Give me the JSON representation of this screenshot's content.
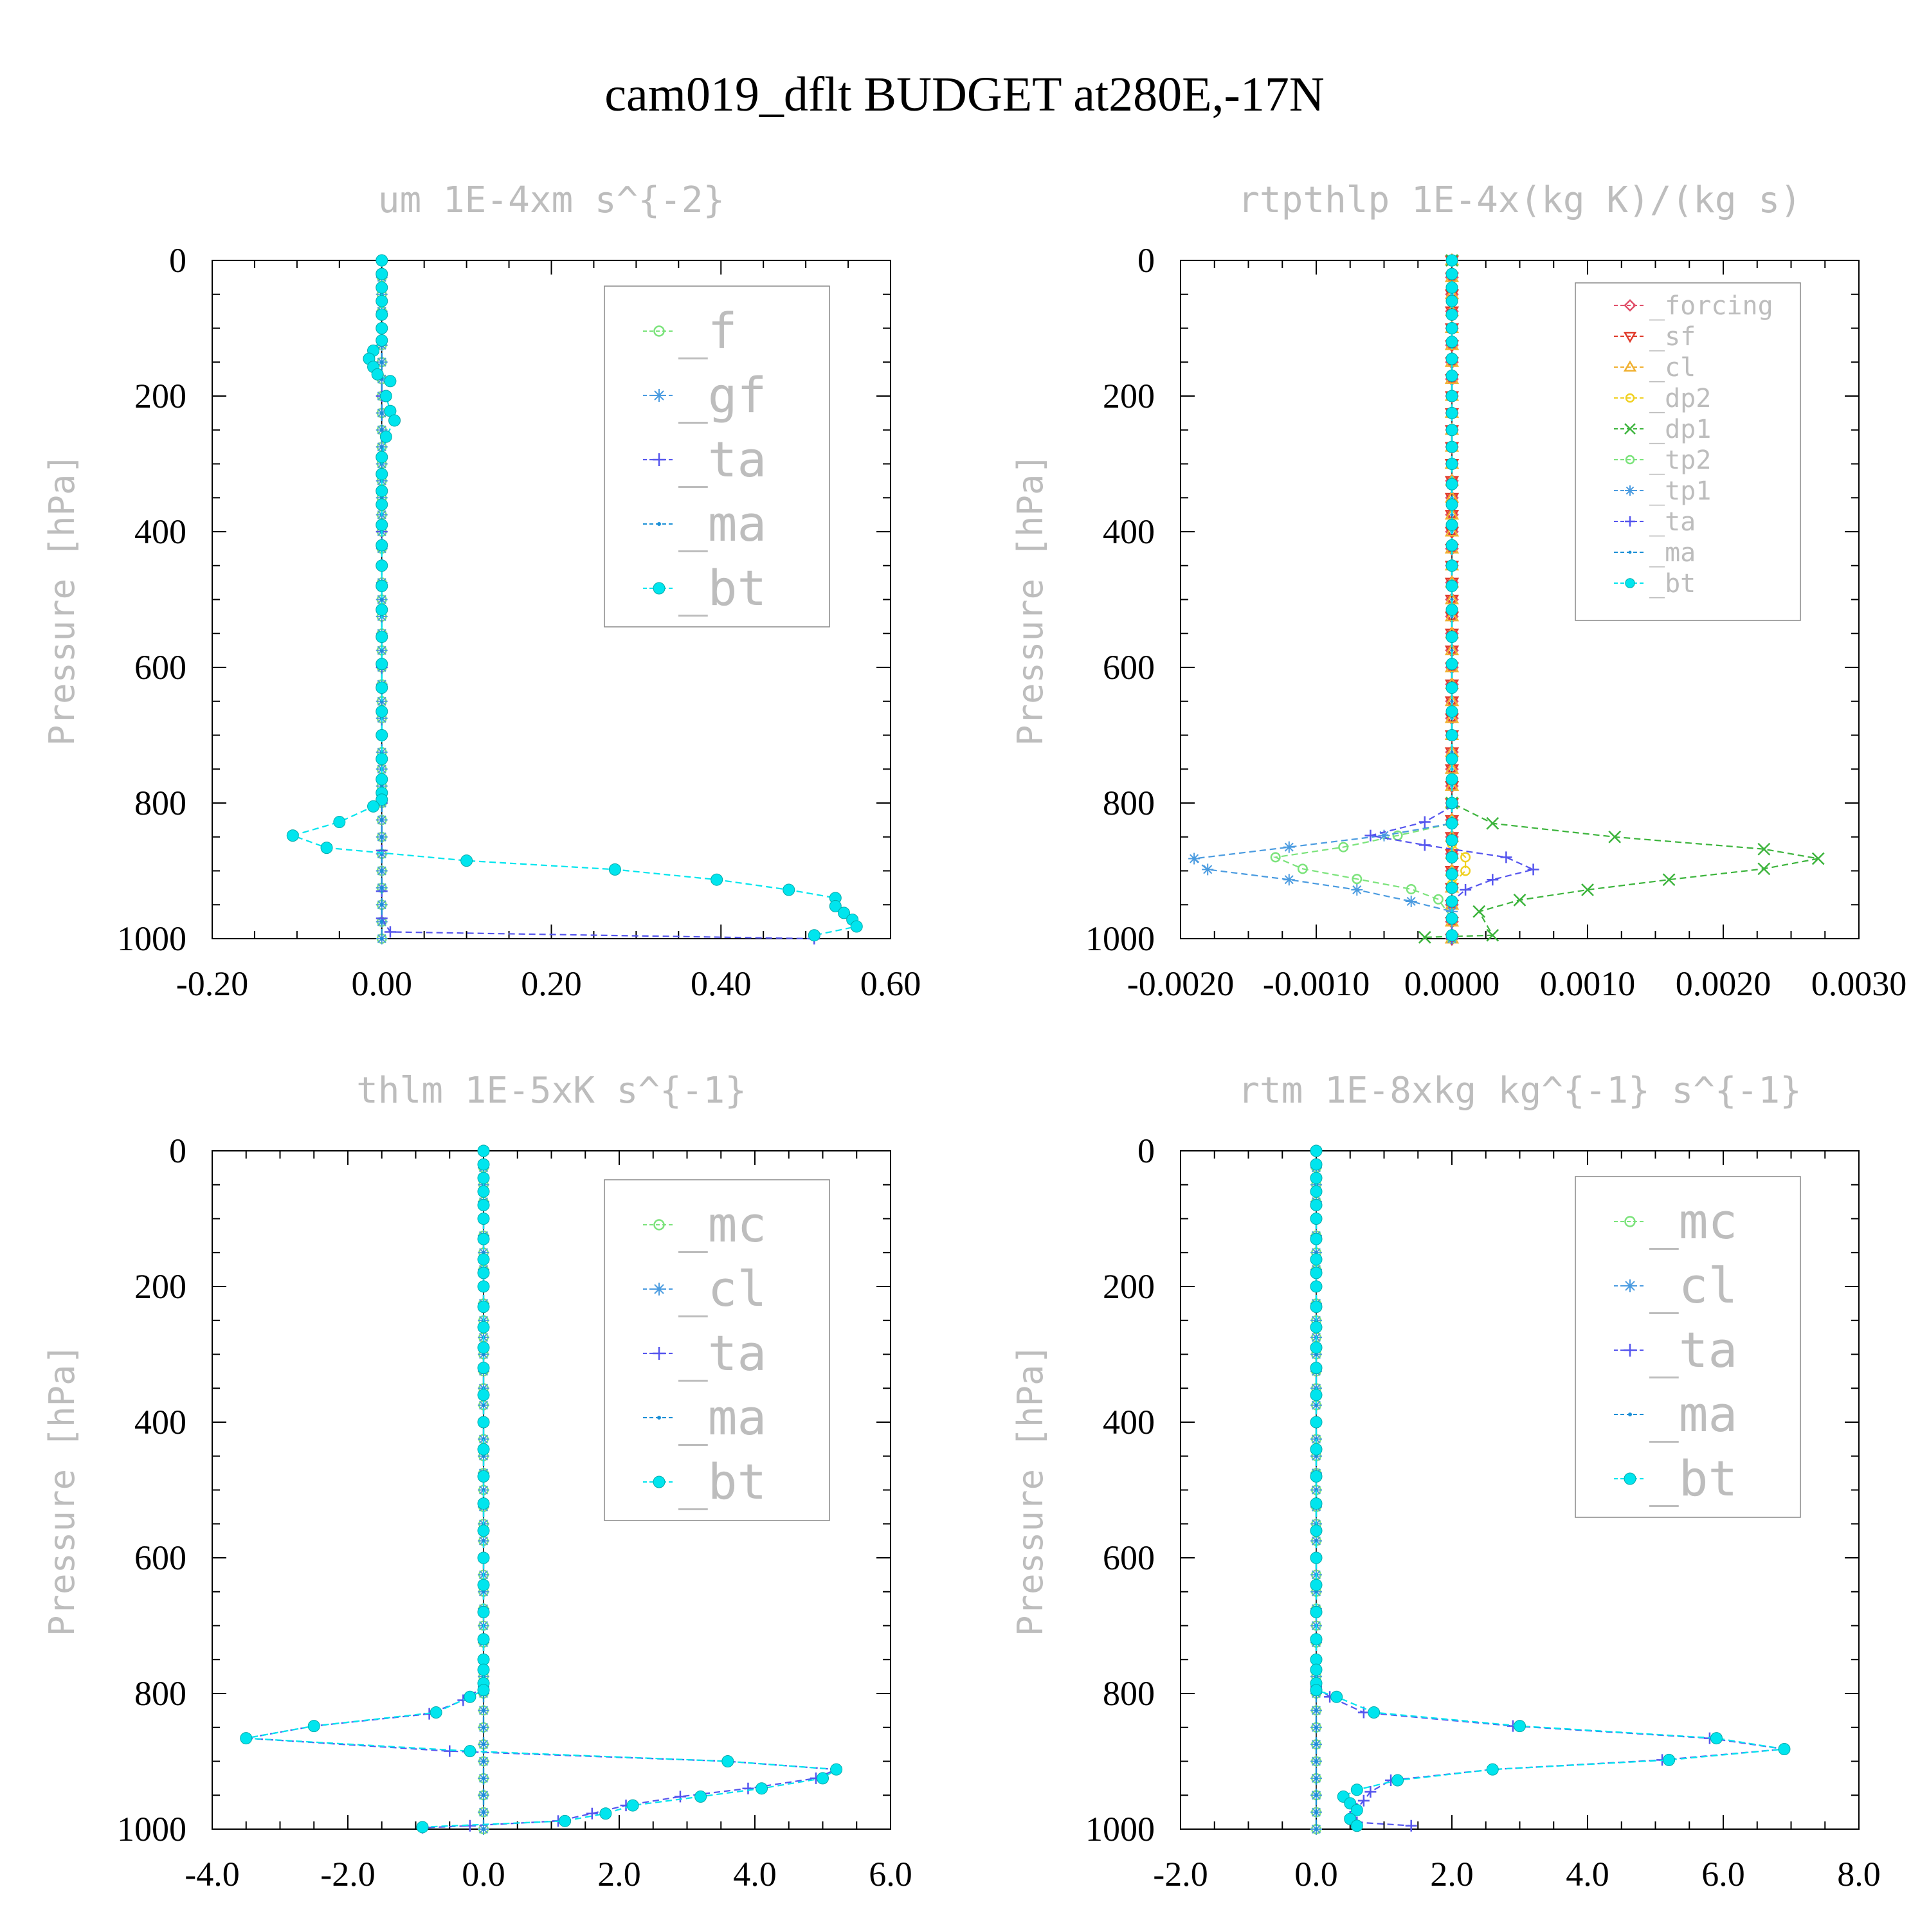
{
  "title": "cam019_dflt  BUDGET at280E,-17N",
  "yaxis_title": "Pressure [hPa]",
  "chart_data": [
    {
      "type": "line",
      "title": "um  1E-4xm s^{-2}",
      "ylabel": "Pressure [hPa]",
      "xlim": [
        -0.2,
        0.6
      ],
      "ylim": [
        1000,
        0
      ],
      "xticks": [
        "-0.20",
        "0.00",
        "0.20",
        "0.40",
        "0.60"
      ],
      "xtick_values": [
        -0.2,
        0.0,
        0.2,
        0.4,
        0.6
      ],
      "yticks": [
        "0",
        "200",
        "400",
        "600",
        "800",
        "1000"
      ],
      "legend_position": "top-right",
      "legend_entries": [
        "_f",
        "_gf",
        "_ta",
        "_ma",
        "_bt"
      ],
      "series": [
        {
          "name": "_f",
          "color": "#7be37b",
          "marker": "circle-open",
          "x": [
            0.0,
            0.0
          ],
          "y": [
            0,
            1000
          ]
        },
        {
          "name": "_gf",
          "color": "#4a9be0",
          "marker": "star",
          "x": [
            0.0,
            0.0
          ],
          "y": [
            0,
            1000
          ]
        },
        {
          "name": "_ta",
          "color": "#5555ee",
          "marker": "plus",
          "x": [
            0.0,
            0.0,
            0.0,
            0.0,
            0.0,
            0.0,
            0.0,
            0.0,
            0.01,
            0.51
          ],
          "y": [
            0,
            200,
            400,
            600,
            800,
            870,
            930,
            970,
            990,
            1000
          ]
        },
        {
          "name": "_ma",
          "color": "#1a8fd6",
          "marker": "dot",
          "x": [
            0.0,
            0.0
          ],
          "y": [
            0,
            1000
          ]
        },
        {
          "name": "_bt",
          "color": "#00e5ee",
          "marker": "dot-filled",
          "x": [
            0.0,
            0.0,
            0.0,
            0.0,
            0.0,
            0.0,
            0.0,
            -0.01,
            -0.015,
            -0.01,
            -0.005,
            0.01,
            0.005,
            0.01,
            0.015,
            0.005,
            0.0,
            0.0,
            0.0,
            0.0,
            0.0,
            0.0,
            0.0,
            0.0,
            0.0,
            0.0,
            0.0,
            0.0,
            0.0,
            0.0,
            0.0,
            0.0,
            0.0,
            0.0,
            -0.01,
            -0.05,
            -0.105,
            -0.065,
            0.1,
            0.275,
            0.395,
            0.48,
            0.535,
            0.535,
            0.545,
            0.555,
            0.56,
            0.51
          ],
          "y": [
            0,
            20,
            40,
            60,
            80,
            100,
            118,
            133,
            145,
            157,
            168,
            178,
            200,
            222,
            236,
            260,
            290,
            315,
            340,
            360,
            390,
            420,
            450,
            480,
            515,
            555,
            595,
            630,
            665,
            700,
            735,
            765,
            785,
            795,
            805,
            828,
            848,
            866,
            885,
            898,
            913,
            928,
            940,
            952,
            962,
            972,
            982,
            995
          ]
        }
      ]
    },
    {
      "type": "line",
      "title": "rtpthlp  1E-4x(kg K)/(kg s)",
      "ylabel": "Pressure [hPa]",
      "xlim": [
        -0.002,
        0.003
      ],
      "ylim": [
        1000,
        0
      ],
      "xticks": [
        "-0.0020",
        "-0.0010",
        "0.0000",
        "0.0010",
        "0.0020",
        "0.0030"
      ],
      "xtick_values": [
        -0.002,
        -0.001,
        0.0,
        0.001,
        0.002,
        0.003
      ],
      "yticks": [
        "0",
        "200",
        "400",
        "600",
        "800",
        "1000"
      ],
      "legend_position": "top-right",
      "legend_entries": [
        "_forcing",
        "_sf",
        "_cl",
        "_dp2",
        "_dp1",
        "_tp2",
        "_tp1",
        "_ta",
        "_ma",
        "_bt"
      ],
      "series": [
        {
          "name": "_forcing",
          "color": "#e0506a",
          "marker": "diamond",
          "x": [
            0.0,
            0.0
          ],
          "y": [
            0,
            1000
          ]
        },
        {
          "name": "_sf",
          "color": "#e03a2a",
          "marker": "triangle-down",
          "x": [
            0.0,
            0.0
          ],
          "y": [
            0,
            1000
          ]
        },
        {
          "name": "_cl",
          "color": "#f0b030",
          "marker": "triangle-up",
          "x": [
            0.0,
            0.0
          ],
          "y": [
            0,
            1000
          ]
        },
        {
          "name": "_dp2",
          "color": "#f0d020",
          "marker": "circle-open",
          "x": [
            0.0,
            0.0,
            0.0001,
            0.0001,
            0.0,
            0.0
          ],
          "y": [
            0,
            860,
            880,
            900,
            920,
            1000
          ]
        },
        {
          "name": "_dp1",
          "color": "#3cb43c",
          "marker": "x",
          "x": [
            0.0,
            0.0,
            0.0003,
            0.0012,
            0.0023,
            0.0027,
            0.0023,
            0.0016,
            0.001,
            0.0005,
            0.0002,
            0.0003,
            -0.0002
          ],
          "y": [
            0,
            800,
            830,
            850,
            868,
            882,
            897,
            913,
            928,
            943,
            960,
            995,
            998
          ]
        },
        {
          "name": "_tp2",
          "color": "#7be37b",
          "marker": "circle-open",
          "x": [
            0.0,
            0.0,
            -0.0004,
            -0.0008,
            -0.0013,
            -0.0011,
            -0.0007,
            -0.0003,
            -0.0001,
            0.0,
            0.0
          ],
          "y": [
            0,
            830,
            848,
            865,
            880,
            897,
            912,
            927,
            942,
            970,
            1000
          ]
        },
        {
          "name": "_tp1",
          "color": "#4a9be0",
          "marker": "star",
          "x": [
            0.0,
            0.0,
            -0.0005,
            -0.0012,
            -0.0019,
            -0.0018,
            -0.0012,
            -0.0007,
            -0.0003,
            0.0,
            0.0
          ],
          "y": [
            0,
            830,
            848,
            865,
            882,
            898,
            913,
            928,
            945,
            960,
            1000
          ]
        },
        {
          "name": "_ta",
          "color": "#5555ee",
          "marker": "plus",
          "x": [
            0.0,
            0.0,
            -0.0002,
            -0.0006,
            -0.0002,
            0.0004,
            0.0006,
            0.0003,
            0.0001,
            0.0,
            0.0
          ],
          "y": [
            0,
            805,
            828,
            848,
            862,
            880,
            898,
            913,
            928,
            945,
            1000
          ]
        },
        {
          "name": "_ma",
          "color": "#1a8fd6",
          "marker": "dot",
          "x": [
            0.0,
            0.0
          ],
          "y": [
            0,
            1000
          ]
        },
        {
          "name": "_bt",
          "color": "#00e5ee",
          "marker": "dot-filled",
          "x": [
            0.0,
            0.0,
            0.0,
            0.0,
            0.0,
            0.0,
            0.0,
            0.0,
            0.0,
            0.0,
            0.0,
            0.0,
            0.0,
            0.0,
            0.0,
            0.0,
            0.0,
            0.0,
            0.0,
            0.0,
            0.0,
            0.0,
            0.0,
            0.0,
            0.0,
            0.0,
            0.0,
            0.0,
            0.0,
            0.0,
            0.0,
            0.0,
            0.0,
            0.0,
            0.0,
            0.0,
            0.0
          ],
          "y": [
            0,
            20,
            40,
            60,
            80,
            100,
            120,
            145,
            170,
            200,
            225,
            250,
            275,
            300,
            330,
            360,
            390,
            420,
            450,
            480,
            515,
            555,
            595,
            630,
            665,
            700,
            735,
            765,
            800,
            830,
            855,
            880,
            905,
            925,
            945,
            970,
            995
          ]
        }
      ]
    },
    {
      "type": "line",
      "title": "thlm  1E-5xK s^{-1}",
      "ylabel": "Pressure [hPa]",
      "xlim": [
        -4.0,
        6.0
      ],
      "ylim": [
        1000,
        0
      ],
      "xticks": [
        "-4.0",
        "-2.0",
        "0.0",
        "2.0",
        "4.0",
        "6.0"
      ],
      "xtick_values": [
        -4.0,
        -2.0,
        0.0,
        2.0,
        4.0,
        6.0
      ],
      "yticks": [
        "0",
        "200",
        "400",
        "600",
        "800",
        "1000"
      ],
      "legend_position": "top-right",
      "legend_entries": [
        "_mc",
        "_cl",
        "_ta",
        "_ma",
        "_bt"
      ],
      "series": [
        {
          "name": "_mc",
          "color": "#7be37b",
          "marker": "circle-open",
          "x": [
            0.0,
            0.0
          ],
          "y": [
            0,
            1000
          ]
        },
        {
          "name": "_cl",
          "color": "#4a9be0",
          "marker": "star",
          "x": [
            0.0,
            0.0
          ],
          "y": [
            0,
            1000
          ]
        },
        {
          "name": "_ta",
          "color": "#5555ee",
          "marker": "plus",
          "x": [
            0.0,
            0.0,
            -0.3,
            -0.8,
            -2.5,
            -3.5,
            -0.5,
            3.6,
            5.2,
            4.9,
            3.9,
            2.9,
            2.1,
            1.6,
            1.1,
            -0.2,
            -0.9
          ],
          "y": [
            0,
            790,
            810,
            830,
            848,
            866,
            885,
            900,
            912,
            925,
            940,
            952,
            965,
            977,
            988,
            995,
            998
          ]
        },
        {
          "name": "_ma",
          "color": "#1a8fd6",
          "marker": "dot",
          "x": [
            0.0,
            0.0
          ],
          "y": [
            0,
            1000
          ]
        },
        {
          "name": "_bt",
          "color": "#00e5ee",
          "marker": "dot-filled",
          "x": [
            0.0,
            0.0,
            0.0,
            0.0,
            0.0,
            0.0,
            0.0,
            0.0,
            0.0,
            0.0,
            0.0,
            0.0,
            0.0,
            0.0,
            0.0,
            0.0,
            0.0,
            0.0,
            0.0,
            0.0,
            0.0,
            0.0,
            0.0,
            0.0,
            0.0,
            0.0,
            0.0,
            0.0,
            -0.2,
            -0.7,
            -2.5,
            -3.5,
            -0.2,
            3.6,
            5.2,
            5.0,
            4.1,
            3.2,
            2.2,
            1.8,
            1.2,
            -0.9
          ],
          "y": [
            0,
            20,
            40,
            60,
            80,
            100,
            130,
            160,
            180,
            200,
            230,
            260,
            290,
            320,
            360,
            400,
            440,
            480,
            520,
            560,
            600,
            640,
            680,
            720,
            750,
            765,
            785,
            795,
            805,
            828,
            848,
            866,
            885,
            900,
            912,
            925,
            940,
            952,
            965,
            977,
            988,
            997
          ]
        }
      ]
    },
    {
      "type": "line",
      "title": "rtm  1E-8xkg kg^{-1} s^{-1}",
      "ylabel": "Pressure [hPa]",
      "xlim": [
        -2.0,
        8.0
      ],
      "ylim": [
        1000,
        0
      ],
      "xticks": [
        "-2.0",
        "0.0",
        "2.0",
        "4.0",
        "6.0",
        "8.0"
      ],
      "xtick_values": [
        -2.0,
        0.0,
        2.0,
        4.0,
        6.0,
        8.0
      ],
      "yticks": [
        "0",
        "200",
        "400",
        "600",
        "800",
        "1000"
      ],
      "legend_position": "top-right",
      "legend_entries": [
        "_mc",
        "_cl",
        "_ta",
        "_ma",
        "_bt"
      ],
      "series": [
        {
          "name": "_mc",
          "color": "#7be37b",
          "marker": "circle-open",
          "x": [
            0.0,
            0.0
          ],
          "y": [
            0,
            1000
          ]
        },
        {
          "name": "_cl",
          "color": "#4a9be0",
          "marker": "star",
          "x": [
            0.0,
            0.0
          ],
          "y": [
            0,
            1000
          ]
        },
        {
          "name": "_ta",
          "color": "#5555ee",
          "marker": "plus",
          "x": [
            0.0,
            0.0,
            0.2,
            0.7,
            2.9,
            5.8,
            6.9,
            5.1,
            2.6,
            1.1,
            0.8,
            0.7,
            0.6,
            0.5,
            0.6,
            1.4
          ],
          "y": [
            0,
            790,
            805,
            828,
            848,
            866,
            882,
            898,
            912,
            928,
            945,
            958,
            970,
            982,
            990,
            995
          ]
        },
        {
          "name": "_ma",
          "color": "#1a8fd6",
          "marker": "dot",
          "x": [
            0.0,
            0.0
          ],
          "y": [
            0,
            1000
          ]
        },
        {
          "name": "_bt",
          "color": "#00e5ee",
          "marker": "dot-filled",
          "x": [
            0.0,
            0.0,
            0.0,
            0.0,
            0.0,
            0.0,
            0.0,
            0.0,
            0.0,
            0.0,
            0.0,
            0.0,
            0.0,
            0.0,
            0.0,
            0.0,
            0.0,
            0.0,
            0.0,
            0.0,
            0.0,
            0.0,
            0.0,
            0.0,
            0.0,
            0.0,
            0.0,
            0.0,
            0.3,
            0.85,
            3.0,
            5.9,
            6.9,
            5.2,
            2.6,
            1.2,
            0.6,
            0.4,
            0.5,
            0.6,
            0.5,
            0.6
          ],
          "y": [
            0,
            20,
            40,
            60,
            80,
            100,
            130,
            160,
            180,
            200,
            230,
            260,
            290,
            320,
            360,
            400,
            440,
            480,
            520,
            560,
            600,
            640,
            680,
            720,
            750,
            765,
            785,
            795,
            805,
            828,
            848,
            866,
            882,
            898,
            912,
            928,
            942,
            952,
            962,
            972,
            985,
            995
          ]
        }
      ]
    }
  ]
}
